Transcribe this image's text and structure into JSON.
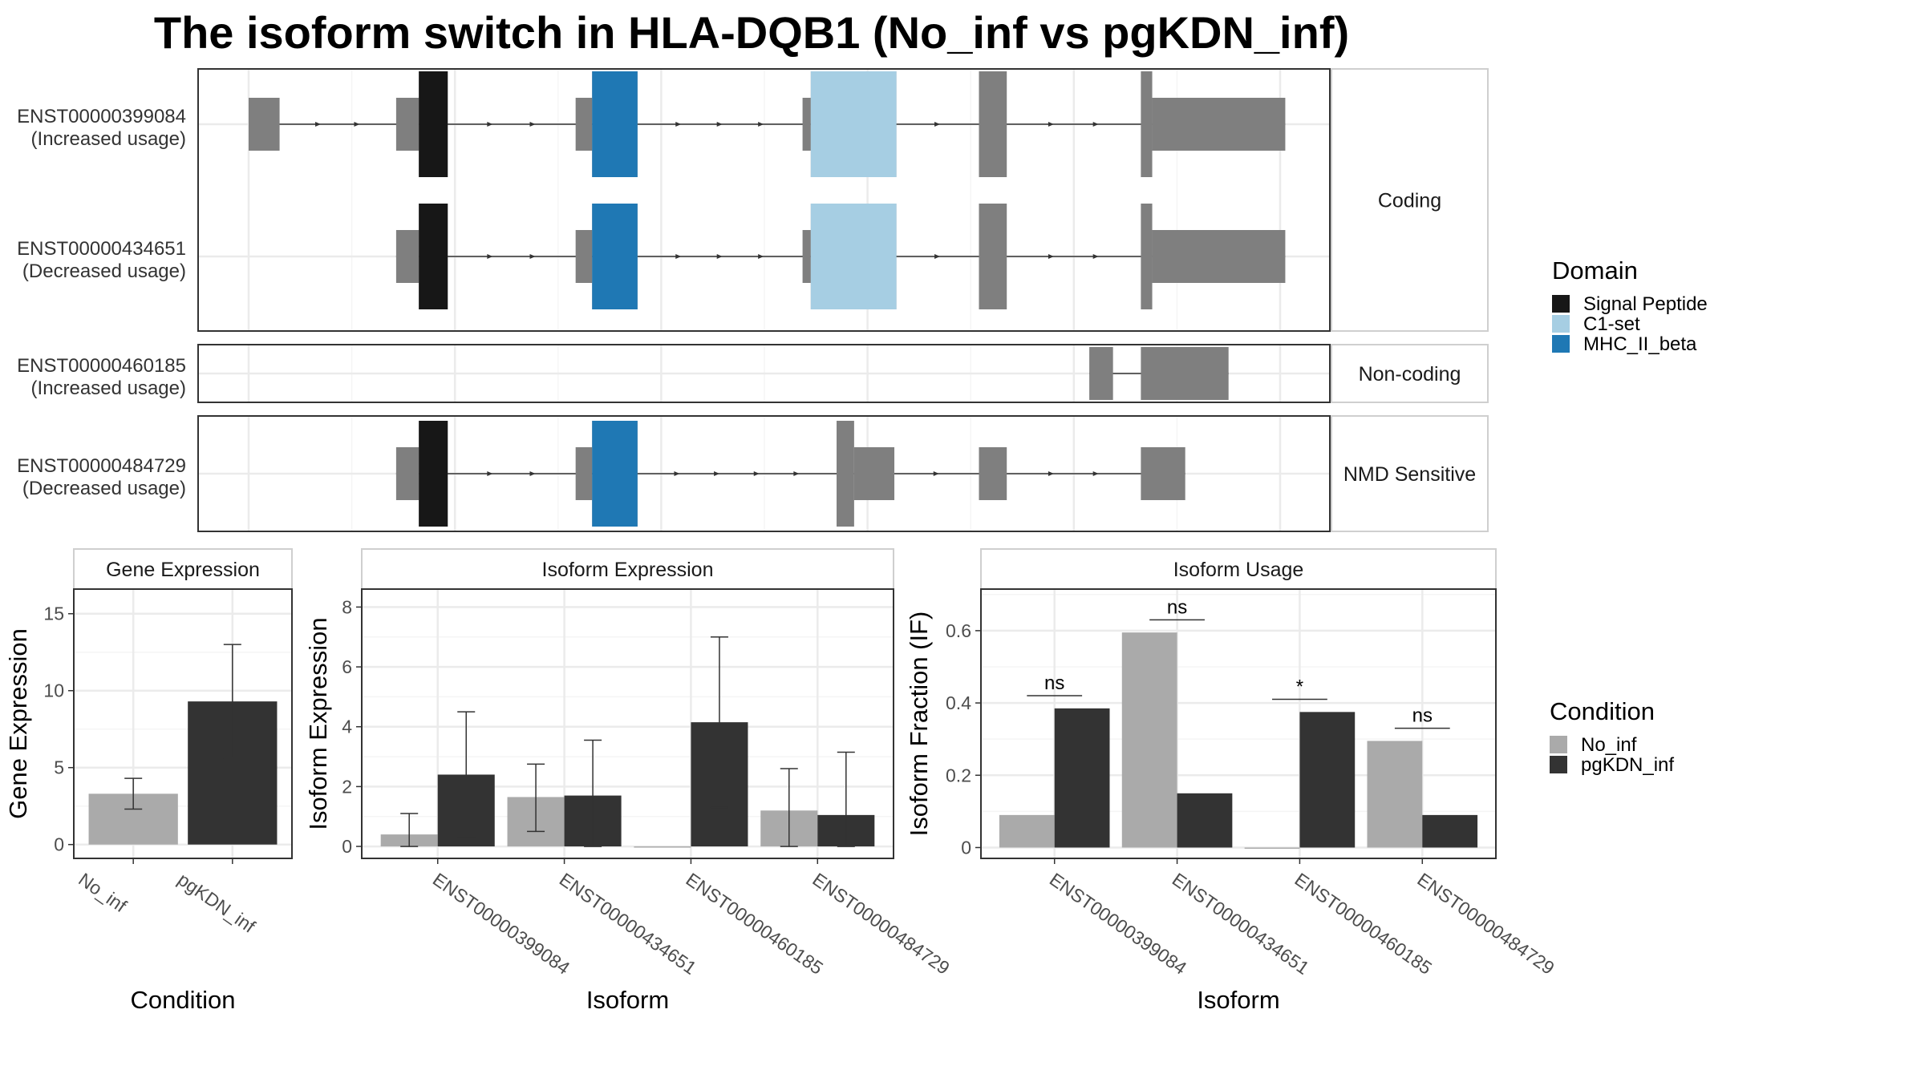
{
  "title": "The isoform switch in HLA-DQB1 (No_inf vs pgKDN_inf)",
  "colors": {
    "signal_peptide": "#171717",
    "c1_set": "#a6cee3",
    "mhc_ii_beta": "#1f78b4",
    "exon": "#7f7f7f",
    "no_inf": "#aaaaaa",
    "pgkdn_inf": "#333333"
  },
  "structure": {
    "coord_range": [
      0,
      1000
    ],
    "panels": [
      {
        "label": "Coding",
        "transcripts": [
          {
            "id": "ENST00000399084",
            "usage": "(Increased usage)",
            "exons": [
              [
                0,
                30,
                "utr"
              ],
              [
                143,
                165,
                "utr"
              ],
              [
                165,
                193,
                "cds"
              ],
              [
                317,
                333,
                "utr"
              ],
              [
                333,
                377,
                "cds"
              ],
              [
                537,
                545,
                "utr"
              ],
              [
                545,
                628,
                "cds"
              ],
              [
                708,
                735,
                "cds"
              ],
              [
                865,
                876,
                "cds"
              ],
              [
                876,
                1005,
                "utr"
              ]
            ],
            "domains": [
              [
                165,
                193,
                "signal_peptide"
              ],
              [
                333,
                377,
                "mhc_ii_beta"
              ],
              [
                545,
                628,
                "c1_set"
              ]
            ]
          },
          {
            "id": "ENST00000434651",
            "usage": "(Decreased usage)",
            "exons": [
              [
                143,
                165,
                "utr"
              ],
              [
                165,
                193,
                "cds"
              ],
              [
                317,
                333,
                "utr"
              ],
              [
                333,
                377,
                "cds"
              ],
              [
                537,
                545,
                "utr"
              ],
              [
                545,
                628,
                "cds"
              ],
              [
                708,
                735,
                "cds"
              ],
              [
                865,
                876,
                "cds"
              ],
              [
                876,
                1005,
                "utr"
              ]
            ],
            "domains": [
              [
                165,
                193,
                "signal_peptide"
              ],
              [
                333,
                377,
                "mhc_ii_beta"
              ],
              [
                545,
                628,
                "c1_set"
              ]
            ]
          }
        ]
      },
      {
        "label": "Non-coding",
        "transcripts": [
          {
            "id": "ENST00000460185",
            "usage": "(Increased usage)",
            "exons": [
              [
                815,
                838,
                "utr"
              ],
              [
                865,
                950,
                "utr"
              ]
            ],
            "domains": []
          }
        ]
      },
      {
        "label": "NMD Sensitive",
        "transcripts": [
          {
            "id": "ENST00000484729",
            "usage": "(Decreased usage)",
            "exons": [
              [
                143,
                165,
                "utr"
              ],
              [
                165,
                193,
                "cds"
              ],
              [
                317,
                333,
                "utr"
              ],
              [
                333,
                377,
                "cds"
              ],
              [
                570,
                587,
                "cds"
              ],
              [
                587,
                626,
                "utr"
              ],
              [
                708,
                735,
                "utr"
              ],
              [
                865,
                908,
                "utr"
              ]
            ],
            "domains": [
              [
                165,
                193,
                "signal_peptide"
              ],
              [
                333,
                377,
                "mhc_ii_beta"
              ]
            ]
          }
        ]
      }
    ]
  },
  "legend_domain": {
    "title": "Domain",
    "items": [
      {
        "label": "Signal Peptide",
        "color": "#171717"
      },
      {
        "label": "C1-set",
        "color": "#a6cee3"
      },
      {
        "label": "MHC_II_beta",
        "color": "#1f78b4"
      }
    ]
  },
  "legend_condition": {
    "title": "Condition",
    "items": [
      {
        "label": "No_inf",
        "color": "#aaaaaa"
      },
      {
        "label": "pgKDN_inf",
        "color": "#333333"
      }
    ]
  },
  "chart_data": [
    {
      "type": "bar",
      "strip": "Gene Expression",
      "xlabel": "Condition",
      "ylabel": "Gene Expression",
      "categories": [
        "No_inf",
        "pgKDN_inf"
      ],
      "values": [
        3.3,
        9.3
      ],
      "errors": [
        [
          2.3,
          4.3
        ],
        [
          5.6,
          13.0
        ]
      ],
      "colors": [
        "#aaaaaa",
        "#333333"
      ],
      "ylim": [
        -0.9,
        16.6
      ],
      "yticks": [
        0,
        5,
        10,
        15
      ]
    },
    {
      "type": "bar",
      "strip": "Isoform Expression",
      "xlabel": "Isoform",
      "ylabel": "Isoform Expression",
      "categories": [
        "ENST00000399084",
        "ENST00000434651",
        "ENST00000460185",
        "ENST00000484729"
      ],
      "series": [
        {
          "name": "No_inf",
          "values": [
            0.4,
            1.65,
            0.0,
            1.2
          ],
          "errors": [
            [
              0.0,
              1.1
            ],
            [
              0.5,
              2.75
            ],
            [
              0.0,
              0.0
            ],
            [
              0.0,
              2.6
            ]
          ]
        },
        {
          "name": "pgKDN_inf",
          "values": [
            2.4,
            1.7,
            4.15,
            1.05
          ],
          "errors": [
            [
              0.3,
              4.5
            ],
            [
              0.0,
              3.55
            ],
            [
              1.3,
              7.0
            ],
            [
              0.0,
              3.15
            ]
          ]
        }
      ],
      "ylim": [
        -0.4,
        8.6
      ],
      "yticks": [
        0,
        2,
        4,
        6,
        8
      ]
    },
    {
      "type": "bar",
      "strip": "Isoform Usage",
      "xlabel": "Isoform",
      "ylabel": "Isoform Fraction (IF)",
      "categories": [
        "ENST00000399084",
        "ENST00000434651",
        "ENST00000460185",
        "ENST00000484729"
      ],
      "series": [
        {
          "name": "No_inf",
          "values": [
            0.09,
            0.595,
            0.0,
            0.295
          ]
        },
        {
          "name": "pgKDN_inf",
          "values": [
            0.385,
            0.15,
            0.375,
            0.09
          ]
        }
      ],
      "significance": [
        "ns",
        "ns",
        "*",
        "ns"
      ],
      "ylim": [
        -0.03,
        0.715
      ],
      "yticks": [
        0.0,
        0.2,
        0.4,
        0.6
      ]
    }
  ]
}
